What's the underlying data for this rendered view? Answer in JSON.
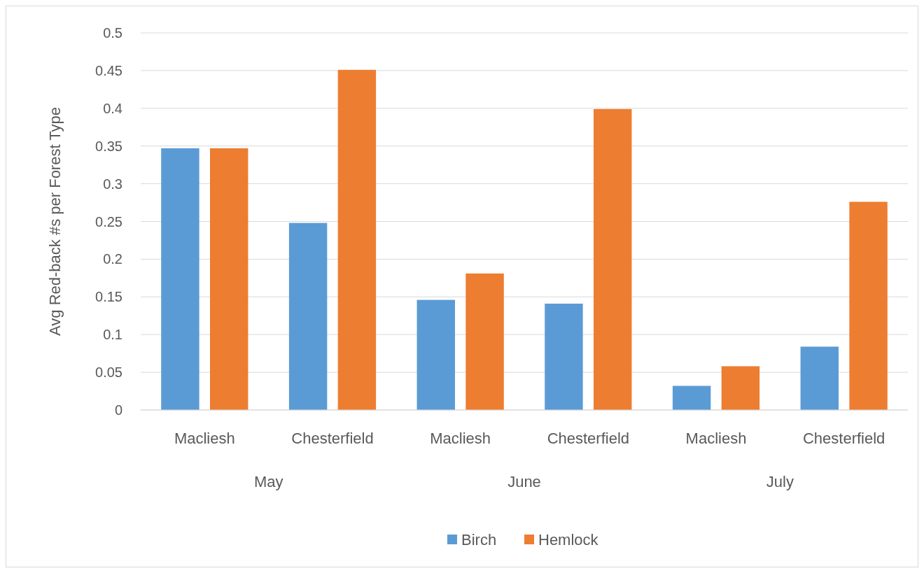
{
  "chart_data": {
    "type": "bar",
    "ylabel": "Avg Red-back #s per Forest Type",
    "categories": [
      "Macliesh",
      "Chesterfield",
      "Macliesh",
      "Chesterfield",
      "Macliesh",
      "Chesterfield"
    ],
    "annotations": [
      "May",
      "June",
      "July"
    ],
    "series": [
      {
        "name": "Birch",
        "color": "#5b9bd5",
        "values": [
          0.347,
          0.248,
          0.146,
          0.141,
          0.032,
          0.084
        ]
      },
      {
        "name": "Hemlock",
        "color": "#ed7d31",
        "values": [
          0.347,
          0.451,
          0.181,
          0.399,
          0.058,
          0.276
        ]
      }
    ],
    "ylim": [
      0,
      0.5
    ],
    "yticks": [
      0,
      0.05,
      0.1,
      0.15,
      0.2,
      0.25,
      0.3,
      0.35,
      0.4,
      0.45,
      0.5
    ],
    "grid": "y",
    "legend": "bottom"
  }
}
